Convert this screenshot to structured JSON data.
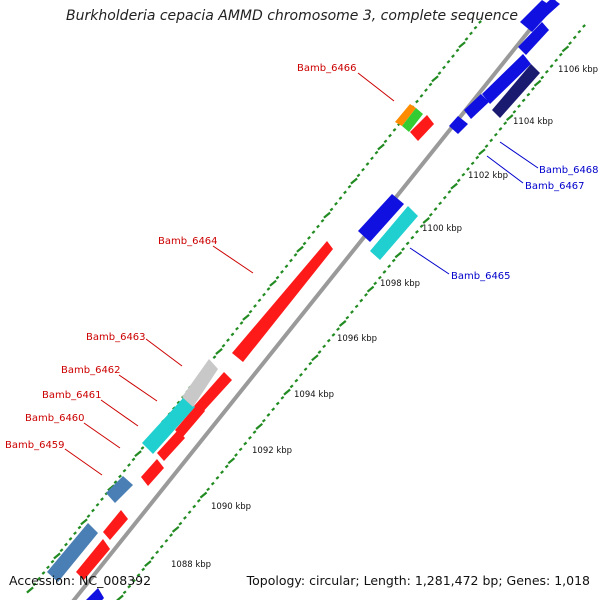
{
  "title": "Burkholderia cepacia AMMD chromosome 3, complete sequence",
  "footer": {
    "accession": "Accession: NC_008392",
    "summary": "Topology: circular; Length: 1,281,472 bp; Genes: 1,018"
  },
  "colors": {
    "backbone": "#9a9a9a",
    "tick": "#228b22",
    "forward_gene": "#ff1a1a",
    "reverse_gene": "#1010e0",
    "rna_steelblue": "#4a7fb5",
    "rna_cyan": "#20d0d0",
    "pseudo_gray": "#c8c8c8",
    "orange": "#ff8c00",
    "green": "#33cc33",
    "navy": "#1a1a70",
    "label_forward": "#cc0000",
    "label_reverse": "#0000cc"
  },
  "scale_labels": [
    "1088 kbp",
    "1090 kbp",
    "1092 kbp",
    "1094 kbp",
    "1096 kbp",
    "1098 kbp",
    "1100 kbp",
    "1102 kbp",
    "1104 kbp",
    "1106 kbp"
  ],
  "gene_labels": {
    "forward": [
      "Bamb_6466",
      "Bamb_6464",
      "Bamb_6463",
      "Bamb_6462",
      "Bamb_6461",
      "Bamb_6460",
      "Bamb_6459"
    ],
    "reverse": [
      "Bamb_6468",
      "Bamb_6467",
      "Bamb_6465"
    ]
  }
}
